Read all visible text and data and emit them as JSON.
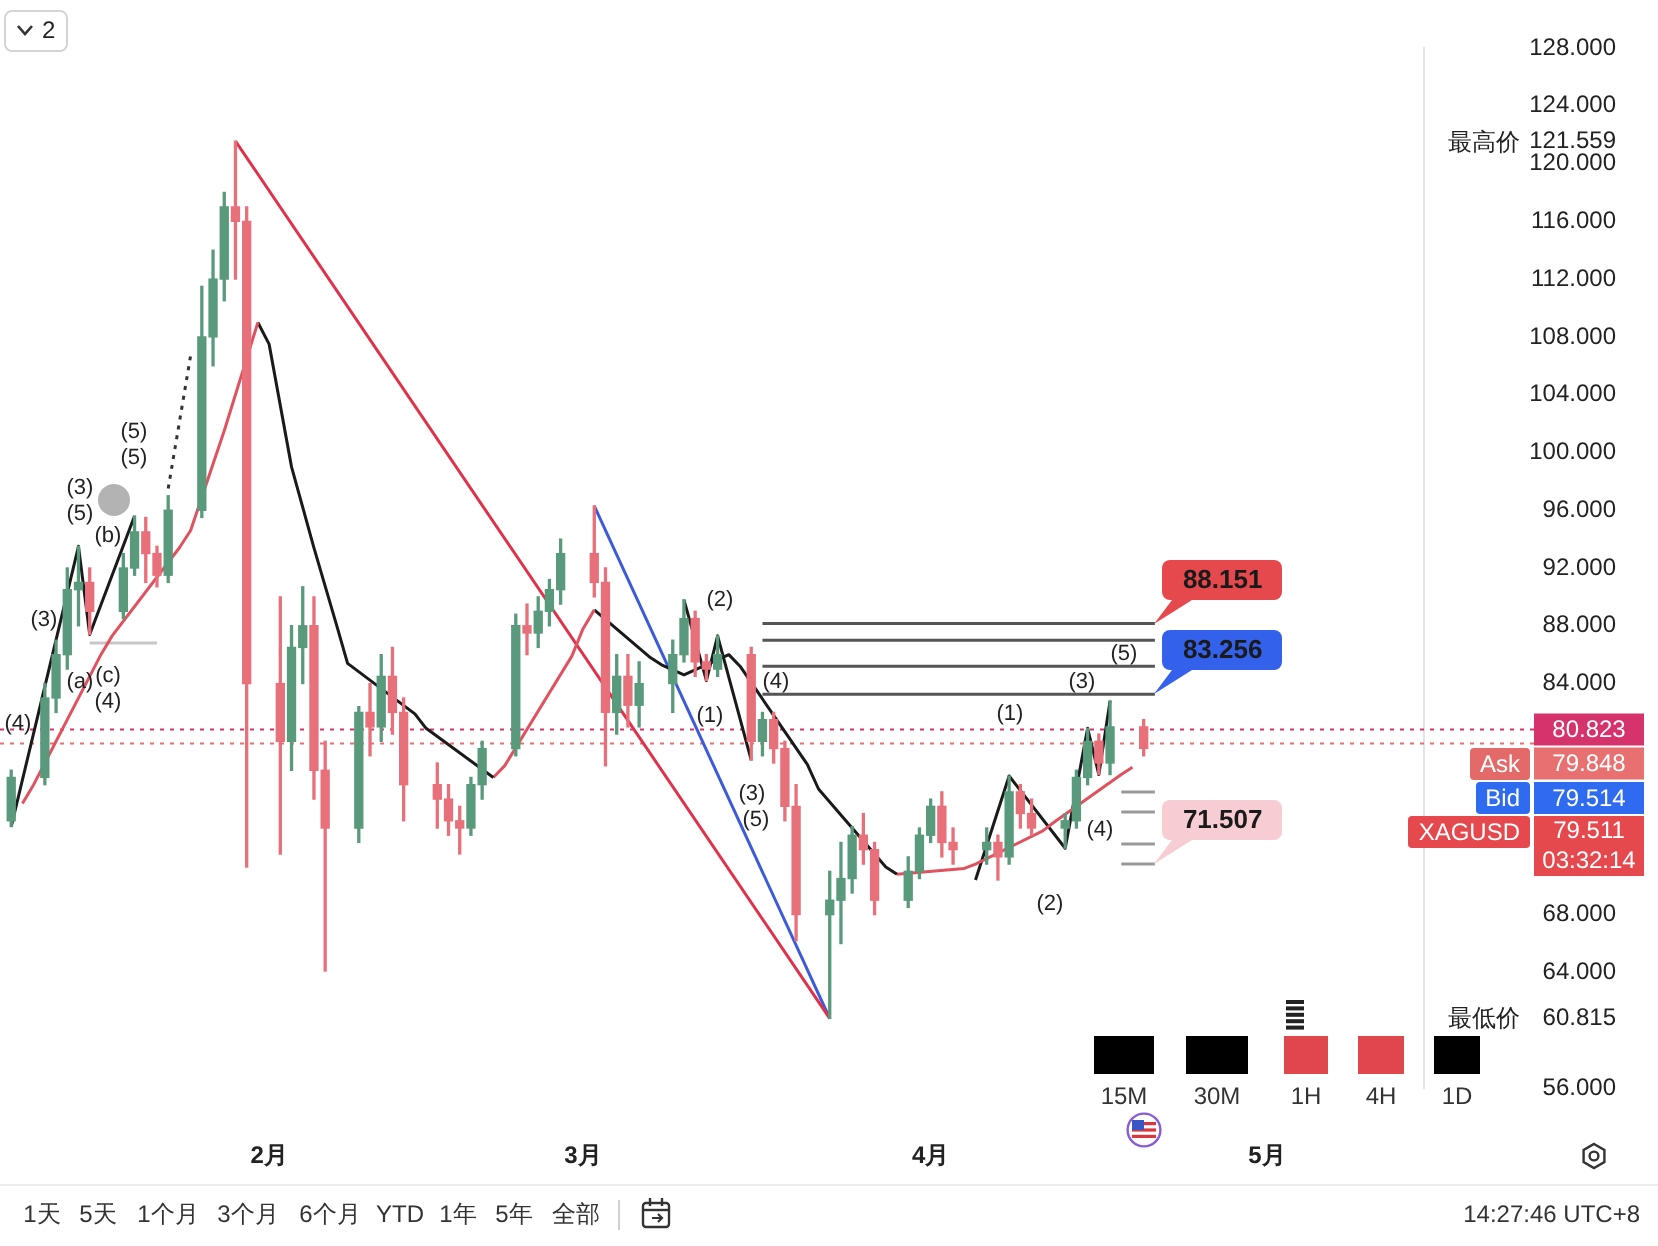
{
  "chart_data": {
    "type": "candlestick",
    "x": [
      "--01-09",
      "--01-12",
      "--01-13",
      "--01-14",
      "--01-15",
      "--01-16",
      "--01-19",
      "--01-20",
      "--01-21",
      "--01-22",
      "--01-23",
      "--01-26",
      "--01-27",
      "--01-28",
      "--01-29",
      "--01-30",
      "--02-02",
      "--02-03",
      "--02-04",
      "--02-05",
      "--02-06",
      "--02-09",
      "--02-10",
      "--02-11",
      "--02-12",
      "--02-13",
      "--02-16",
      "--02-17",
      "--02-18",
      "--02-19",
      "--02-20",
      "--02-23",
      "--02-24",
      "--02-25",
      "--02-26",
      "--02-27",
      "--03-02",
      "--03-03",
      "--03-04",
      "--03-05",
      "--03-06",
      "--03-09",
      "--03-10",
      "--03-11",
      "--03-12",
      "--03-13",
      "--03-16",
      "--03-17",
      "--03-18",
      "--03-19",
      "--03-20",
      "--03-23",
      "--03-24",
      "--03-25",
      "--03-26",
      "--03-27",
      "--03-30",
      "--03-31",
      "--04-01",
      "--04-02",
      "--04-03",
      "--04-06",
      "--04-07",
      "--04-08",
      "--04-09",
      "--04-10",
      "--04-13",
      "--04-14",
      "--04-15",
      "--04-16",
      "--04-17",
      "--04-20"
    ],
    "ohlc": [
      [
        74.5,
        78,
        74.1,
        77.5
      ],
      [
        77.5,
        84,
        77,
        83
      ],
      [
        83,
        87,
        82,
        86
      ],
      [
        86,
        92,
        85,
        90.5
      ],
      [
        90.5,
        93.5,
        88,
        91
      ],
      [
        91,
        92,
        87.4,
        89
      ],
      [
        89,
        93,
        88.5,
        92
      ],
      [
        92,
        95.6,
        91.5,
        94.5
      ],
      [
        94.5,
        95.5,
        91,
        93
      ],
      [
        93,
        93.5,
        90.7,
        91.5
      ],
      [
        91.5,
        97,
        91,
        96
      ],
      [
        96,
        111.5,
        95.5,
        108
      ],
      [
        108,
        114,
        106,
        112
      ],
      [
        112,
        118,
        110.5,
        117
      ],
      [
        117,
        121.559,
        112,
        116
      ],
      [
        116,
        117,
        71.3,
        84
      ],
      [
        84,
        90,
        72.2,
        80
      ],
      [
        80,
        88,
        78,
        86.5
      ],
      [
        86.5,
        90.7,
        84,
        88
      ],
      [
        88,
        90,
        76,
        78
      ],
      [
        78,
        80,
        64.1,
        74
      ],
      [
        74,
        82.4,
        73,
        82
      ],
      [
        82,
        84,
        79,
        81
      ],
      [
        81,
        86,
        80,
        84.5
      ],
      [
        84.5,
        86.5,
        80.5,
        82
      ],
      [
        82,
        83,
        74.5,
        77
      ],
      [
        77,
        78.5,
        74,
        76
      ],
      [
        76,
        77,
        73.5,
        74.5
      ],
      [
        74.5,
        75.5,
        72.2,
        74
      ],
      [
        74,
        77.5,
        73.5,
        77
      ],
      [
        77,
        80,
        76,
        79.5
      ],
      [
        79.5,
        88.8,
        79,
        88
      ],
      [
        88,
        89.5,
        86,
        87.5
      ],
      [
        87.5,
        90,
        86.5,
        89
      ],
      [
        89,
        91.2,
        88,
        90.5
      ],
      [
        90.5,
        94,
        89.5,
        93
      ],
      [
        93,
        96.3,
        90,
        91
      ],
      [
        91,
        92,
        78.3,
        82
      ],
      [
        82,
        86,
        80.5,
        84.5
      ],
      [
        84.5,
        86,
        81,
        82.5
      ],
      [
        82.5,
        85.5,
        81,
        84
      ],
      [
        84,
        87,
        82,
        86
      ],
      [
        86,
        89.8,
        85.5,
        88.5
      ],
      [
        88.5,
        89,
        84.5,
        85.5
      ],
      [
        85.5,
        86,
        84.2,
        85
      ],
      [
        85,
        87.3,
        84.5,
        86
      ],
      [
        86,
        86.5,
        78.7,
        80
      ],
      [
        80,
        82,
        79,
        81.5
      ],
      [
        81.5,
        82,
        78.5,
        79.5
      ],
      [
        79.5,
        80,
        74.5,
        75.5
      ],
      [
        75.5,
        77,
        66.2,
        68
      ],
      [
        68,
        71,
        60.815,
        69
      ],
      [
        69,
        73,
        66,
        70.5
      ],
      [
        70.5,
        74.1,
        69.5,
        73.5
      ],
      [
        73.5,
        75,
        71.5,
        72.5
      ],
      [
        72.5,
        73,
        68,
        69
      ],
      [
        69,
        72,
        68.5,
        71
      ],
      [
        71,
        74,
        70.5,
        73.5
      ],
      [
        73.5,
        76,
        73,
        75.5
      ],
      [
        75.5,
        76.5,
        72,
        73
      ],
      [
        73,
        74,
        71.5,
        72.5
      ],
      [
        72.5,
        74,
        71.5,
        73
      ],
      [
        73,
        73.5,
        70.4,
        72
      ],
      [
        72,
        77.6,
        71.5,
        76.5
      ],
      [
        76.5,
        77,
        74,
        75
      ],
      [
        75,
        76,
        73.5,
        74
      ],
      [
        74,
        75,
        72.6,
        74.5
      ],
      [
        74.5,
        78,
        74,
        77.5
      ],
      [
        77.5,
        80.9,
        77,
        80
      ],
      [
        80,
        80.5,
        77.7,
        78.5
      ],
      [
        78.5,
        82.8,
        77.7,
        81
      ],
      [
        81,
        81.5,
        79,
        79.511
      ]
    ],
    "colors": [
      "#5a9a7c",
      "#5a9a7c",
      "#5a9a7c",
      "#5a9a7c",
      "#5a9a7c",
      "#e8707a",
      "#5a9a7c",
      "#5a9a7c",
      "#e8707a",
      "#e8707a",
      "#5a9a7c",
      "#5a9a7c",
      "#5a9a7c",
      "#5a9a7c",
      "#e8707a",
      "#e8707a",
      "#e8707a",
      "#5a9a7c",
      "#5a9a7c",
      "#e8707a",
      "#e8707a",
      "#5a9a7c",
      "#e8707a",
      "#5a9a7c",
      "#e8707a",
      "#e8707a",
      "#e8707a",
      "#e8707a",
      "#e8707a",
      "#5a9a7c",
      "#5a9a7c",
      "#5a9a7c",
      "#e8707a",
      "#5a9a7c",
      "#5a9a7c",
      "#5a9a7c",
      "#e8707a",
      "#e8707a",
      "#5a9a7c",
      "#e8707a",
      "#5a9a7c",
      "#5a9a7c",
      "#5a9a7c",
      "#e8707a",
      "#e8707a",
      "#5a9a7c",
      "#e8707a",
      "#5a9a7c",
      "#e8707a",
      "#e8707a",
      "#e8707a",
      "#5a9a7c",
      "#5a9a7c",
      "#5a9a7c",
      "#e8707a",
      "#e8707a",
      "#5a9a7c",
      "#5a9a7c",
      "#5a9a7c",
      "#e8707a",
      "#e8707a",
      "#5a9a7c",
      "#e8707a",
      "#5a9a7c",
      "#e8707a",
      "#e8707a",
      "#5a9a7c",
      "#5a9a7c",
      "#5a9a7c",
      "#e8707a",
      "#5a9a7c",
      "#e8707a"
    ],
    "series": [
      {
        "type": "line",
        "color": "#e0525f",
        "x": [
          "--01-10",
          "--01-11",
          "--01-17",
          "--01-18",
          "--01-24",
          "--01-25",
          "--01-28",
          "--01-31"
        ],
        "values": [
          75.7,
          77,
          86,
          87.3,
          93.4,
          94.6,
          101.5,
          109
        ]
      },
      {
        "type": "line",
        "color": "#1a1a1a",
        "x": [
          "--01-31",
          "--02-01",
          "--02-03",
          "--02-05",
          "--02-07",
          "--02-08",
          "--02-14",
          "--02-15",
          "--02-21"
        ],
        "values": [
          109,
          107.5,
          99,
          93.4,
          88.1,
          85.4,
          81.9,
          80.9,
          77.5
        ]
      },
      {
        "type": "line",
        "color": "#e0525f",
        "x": [
          "--02-21",
          "--02-22",
          "--02-28",
          "--03-01",
          "--03-02"
        ],
        "values": [
          77.5,
          78.3,
          85.9,
          87.8,
          89.1
        ]
      },
      {
        "type": "line",
        "color": "#1a1a1a",
        "x": [
          "--03-02",
          "--03-07",
          "--03-08",
          "--03-10",
          "--03-14",
          "--03-15",
          "--03-21",
          "--03-22",
          "--03-28",
          "--03-29"
        ],
        "values": [
          89.1,
          85.8,
          85.3,
          84.6,
          86,
          85.2,
          78.4,
          76.7,
          71.3,
          70.8
        ]
      },
      {
        "type": "line",
        "color": "#e0525f",
        "x": [
          "--03-29",
          "--04-04",
          "--04-05",
          "--04-11",
          "--04-12",
          "--04-18",
          "--04-19"
        ],
        "values": [
          70.8,
          71.2,
          71.5,
          73.8,
          74.4,
          77.7,
          78.2
        ]
      },
      {
        "type": "line",
        "color": "#1a1a1a",
        "x": [
          "--01-09",
          "--01-15",
          "--01-16",
          "--01-20"
        ],
        "values": [
          74.1,
          93.5,
          87.4,
          95.6
        ]
      },
      {
        "type": "line",
        "color": "#333333",
        "line_style": "dotted",
        "x": [
          "--01-23",
          "--01-25"
        ],
        "values": [
          97.5,
          106.7
        ]
      },
      {
        "type": "line",
        "color": "#1a1a1a",
        "x": [
          "--03-10",
          "--03-12",
          "--03-13",
          "--03-16"
        ],
        "values": [
          89.8,
          84.2,
          87.3,
          78.7
        ]
      },
      {
        "type": "line",
        "color": "#1a1a1a",
        "x": [
          "--04-05",
          "--04-08",
          "--04-13",
          "--04-15",
          "--04-16",
          "--04-17"
        ],
        "values": [
          70.4,
          77.6,
          72.6,
          80.9,
          77.7,
          82.8
        ]
      },
      {
        "type": "line",
        "color": "#e0314b",
        "x": [
          "--01-29",
          "--03-23"
        ],
        "values": [
          121.559,
          60.815
        ]
      },
      {
        "type": "line",
        "color": "#3b5bdb",
        "x": [
          "--03-02",
          "--03-23"
        ],
        "values": [
          96.3,
          60.815
        ]
      },
      {
        "type": "line",
        "color": "#555555",
        "x": [
          "--03-17",
          "--04-21"
        ],
        "values": [
          88.151,
          88.151
        ]
      },
      {
        "type": "line",
        "color": "#555555",
        "x": [
          "--03-17",
          "--04-21"
        ],
        "values": [
          87,
          87
        ]
      },
      {
        "type": "line",
        "color": "#555555",
        "x": [
          "--03-17",
          "--04-21"
        ],
        "values": [
          85.2,
          85.2
        ]
      },
      {
        "type": "line",
        "color": "#555555",
        "x": [
          "--03-17",
          "--04-21"
        ],
        "values": [
          83.256,
          83.256
        ]
      },
      {
        "type": "line",
        "color": "#999999",
        "x": [
          "--04-18",
          "--04-21"
        ],
        "values": [
          76.5,
          76.5
        ]
      },
      {
        "type": "line",
        "color": "#999999",
        "x": [
          "--04-18",
          "--04-21"
        ],
        "values": [
          75.1,
          75.1
        ]
      },
      {
        "type": "line",
        "color": "#999999",
        "x": [
          "--04-18",
          "--04-21"
        ],
        "values": [
          72.9,
          72.9
        ]
      },
      {
        "type": "line",
        "color": "#999999",
        "x": [
          "--04-18",
          "--04-21"
        ],
        "values": [
          71.507,
          71.507
        ]
      },
      {
        "type": "line",
        "color": "#c8c8c8",
        "x": [
          "--01-16",
          "--01-22"
        ],
        "values": [
          86.8,
          86.8
        ]
      }
    ],
    "xlim": [
      "--01-08",
      "--05-15"
    ],
    "xticks": [
      {
        "value": "--02-01",
        "label": "2月"
      },
      {
        "value": "--03-01",
        "label": "3月"
      },
      {
        "value": "--04-01",
        "label": "4月"
      },
      {
        "value": "--05-01",
        "label": "5月"
      }
    ],
    "ylim": [
      56,
      128
    ],
    "yticks": [
      {
        "value": 128,
        "label": "128.000"
      },
      {
        "value": 124,
        "label": "124.000"
      },
      121.559,
      {
        "value": 120,
        "label": "120.000"
      },
      {
        "value": 116,
        "label": "116.000"
      },
      {
        "value": 112,
        "label": "112.000"
      },
      {
        "value": 108,
        "label": "108.000"
      },
      {
        "value": 104,
        "label": "104.000"
      },
      {
        "value": 100,
        "label": "100.000"
      },
      {
        "value": 96,
        "label": "96.000"
      },
      {
        "value": 92,
        "label": "92.000"
      },
      {
        "value": 88,
        "label": "88.000"
      },
      {
        "value": 84,
        "label": "84.000"
      },
      {
        "value": 68,
        "label": "68.000"
      },
      {
        "value": 64,
        "label": "64.000"
      },
      60.815,
      {
        "value": 56,
        "label": "56.000"
      }
    ],
    "ref_lines": [
      {
        "axis": "y",
        "value": 80.823,
        "label": "80.823",
        "color": "#d6336c",
        "line_style": "dotted"
      },
      {
        "axis": "y",
        "value": 79.848,
        "label": "79.848",
        "color": "#e87070",
        "line_style": "dotted"
      }
    ],
    "annotations": [
      "(3)",
      "(4)",
      "(3)",
      "(5)",
      "(b)",
      "(a)",
      "(c)",
      "(4)",
      "(5)",
      "(5)",
      "(2)",
      "(1)",
      "(4)",
      "(3)",
      "(5)",
      "(1)",
      "(2)",
      "(3)",
      "(5)",
      "(4)",
      "最高价",
      "最低价",
      "Ask",
      "Bid",
      "79.514",
      "XAGUSD",
      "79.511",
      "03:32:14",
      "2",
      "15M",
      "30M",
      "1H",
      "4H",
      "1D",
      "1天",
      "5天",
      "1个月",
      "3个月",
      "6个月",
      "YTD",
      "1年",
      "5年",
      "全部",
      "14:27:46 UTC+8",
      {
        "text": "88.151",
        "x": "--04-21",
        "y": 88.151
      },
      {
        "text": "83.256",
        "x": "--04-21",
        "y": 83.256
      },
      {
        "text": "71.507",
        "x": "--04-21",
        "y": 71.507
      }
    ]
  }
}
